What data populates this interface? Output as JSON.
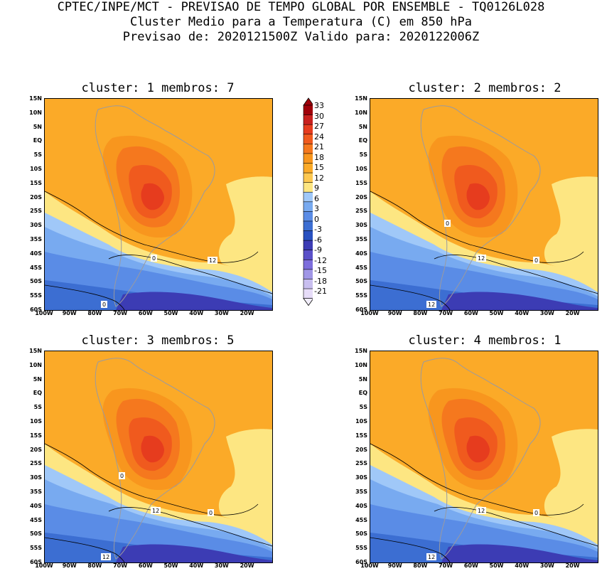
{
  "header": {
    "line1": "CPTEC/INPE/MCT - PREVISAO DE TEMPO GLOBAL POR ENSEMBLE - TQ0126L028",
    "line2": "Cluster Medio para a Temperatura (C) em 850 hPa",
    "line3": "Previsao de: 2020121500Z   Valido para: 2020122006Z"
  },
  "axes": {
    "lat_labels": [
      "15N",
      "10N",
      "5N",
      "EQ",
      "5S",
      "10S",
      "15S",
      "20S",
      "25S",
      "30S",
      "35S",
      "40S",
      "45S",
      "50S",
      "55S",
      "60S"
    ],
    "lon_labels": [
      "100W",
      "90W",
      "80W",
      "70W",
      "60W",
      "50W",
      "40W",
      "30W",
      "20W"
    ]
  },
  "panels": [
    {
      "title": "cluster: 1   membros: 7",
      "labels": [
        "0",
        "12",
        "0"
      ]
    },
    {
      "title": "cluster: 2   membros: 2",
      "labels": [
        "12",
        "0",
        "12",
        "0"
      ]
    },
    {
      "title": "cluster: 3   membros: 5",
      "labels": [
        "12",
        "0",
        "12",
        "0"
      ]
    },
    {
      "title": "cluster: 4   membros: 1",
      "labels": [
        "12",
        "0",
        "12"
      ]
    }
  ],
  "colorbar": {
    "labels": [
      "33",
      "30",
      "27",
      "24",
      "21",
      "18",
      "15",
      "12",
      "9",
      "6",
      "3",
      "0",
      "-3",
      "-6",
      "-9",
      "-12",
      "-15",
      "-18",
      "-21"
    ],
    "colors": [
      "#a0000a",
      "#c8201e",
      "#e63c1e",
      "#f05a1e",
      "#f5781e",
      "#f8961e",
      "#fbaa28",
      "#fdc850",
      "#fde682",
      "#a0c8f8",
      "#78aaf0",
      "#5a8ce6",
      "#3c6ed2",
      "#2850c0",
      "#3c3cb4",
      "#5a50c8",
      "#7d6edc",
      "#a096e6",
      "#c8beef",
      "#e6dcf8"
    ]
  },
  "colors": {
    "land_outline": "#9a9aa0",
    "contour": "#000000"
  }
}
